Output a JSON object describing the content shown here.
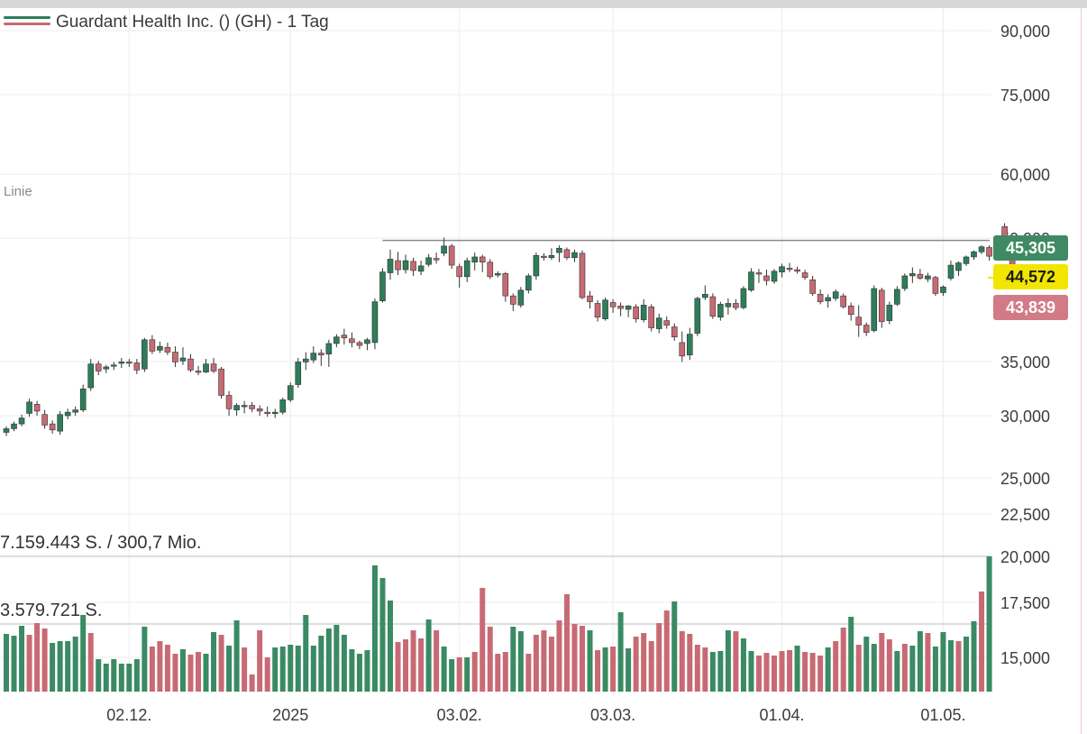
{
  "chart_title": "Guardant Health Inc. () (GH) - 1 Tag",
  "indicator_label": "Linie",
  "volume_labels": {
    "top": "7.159.443 S. / 300,7 Mio.",
    "mid": "3.579.721 S."
  },
  "price_badges": [
    {
      "value": "45,305",
      "bg": "#3e8a62",
      "fg": "#ffffff"
    },
    {
      "value": "44,572",
      "bg": "#f2e600",
      "fg": "#1a1a1a"
    },
    {
      "value": "43,839",
      "bg": "#d27a85",
      "fg": "#ffffff"
    }
  ],
  "colors": {
    "up": "#2e7d5b",
    "down": "#c86a74",
    "volume_up": "#3a8a64",
    "volume_down": "#c86a74",
    "grid": "#ececec",
    "resistance_line": "#8a8a8a"
  },
  "chart_data": {
    "type": "candlestick",
    "title": "Guardant Health Inc. () (GH) - 1 Tag",
    "y_scale": "log",
    "y_ticks": [
      {
        "value": 90,
        "label": "90,000"
      },
      {
        "value": 75,
        "label": "75,000"
      },
      {
        "value": 60,
        "label": "60,000"
      },
      {
        "value": 50,
        "label": "50,000"
      },
      {
        "value": 35,
        "label": "35,000"
      },
      {
        "value": 30,
        "label": "30,000"
      },
      {
        "value": 25,
        "label": "25,000"
      },
      {
        "value": 22.5,
        "label": "22,500"
      },
      {
        "value": 20,
        "label": "20,000"
      },
      {
        "value": 17.5,
        "label": "17,500"
      },
      {
        "value": 15,
        "label": "15,000"
      }
    ],
    "x_tick_labels": [
      {
        "label": "02.12.",
        "index": 16
      },
      {
        "label": "2025",
        "index": 37
      },
      {
        "label": "03.02.",
        "index": 59
      },
      {
        "label": "03.03.",
        "index": 79
      },
      {
        "label": "01.04.",
        "index": 101
      },
      {
        "label": "01.05.",
        "index": 122
      }
    ],
    "resistance_level": 49.6,
    "last_price": 44.572,
    "ohlc": [
      [
        28.6,
        29.1,
        28.3,
        28.9
      ],
      [
        28.9,
        29.5,
        28.7,
        29.3
      ],
      [
        29.3,
        30.1,
        29.1,
        29.8
      ],
      [
        30.2,
        31.5,
        29.9,
        31.2
      ],
      [
        31.0,
        31.3,
        30.0,
        30.4
      ],
      [
        30.1,
        30.5,
        28.9,
        29.2
      ],
      [
        29.3,
        29.6,
        28.5,
        28.8
      ],
      [
        28.7,
        30.4,
        28.4,
        30.1
      ],
      [
        30.0,
        30.6,
        29.7,
        30.3
      ],
      [
        30.3,
        30.8,
        30.0,
        30.5
      ],
      [
        30.5,
        32.8,
        30.3,
        32.4
      ],
      [
        32.5,
        35.3,
        32.2,
        34.8
      ],
      [
        34.8,
        35.1,
        33.7,
        34.1
      ],
      [
        34.3,
        34.7,
        33.9,
        34.5
      ],
      [
        34.6,
        35.0,
        34.2,
        34.7
      ],
      [
        34.9,
        35.4,
        34.4,
        35.0
      ],
      [
        35.0,
        35.3,
        34.5,
        34.9
      ],
      [
        34.9,
        35.3,
        33.8,
        34.2
      ],
      [
        34.3,
        37.5,
        34.0,
        37.3
      ],
      [
        37.3,
        37.8,
        35.8,
        36.1
      ],
      [
        36.2,
        37.1,
        35.9,
        36.6
      ],
      [
        36.5,
        37.0,
        35.7,
        36.0
      ],
      [
        36.0,
        36.6,
        34.5,
        35.0
      ],
      [
        35.1,
        36.5,
        34.7,
        35.4
      ],
      [
        35.3,
        35.8,
        34.0,
        34.2
      ],
      [
        34.1,
        34.6,
        33.7,
        34.0
      ],
      [
        34.0,
        35.3,
        33.9,
        34.8
      ],
      [
        34.8,
        35.4,
        33.9,
        34.1
      ],
      [
        34.3,
        34.5,
        31.5,
        31.8
      ],
      [
        31.8,
        32.2,
        30.0,
        30.6
      ],
      [
        30.5,
        31.1,
        30.0,
        30.9
      ],
      [
        30.8,
        31.3,
        30.2,
        30.9
      ],
      [
        30.9,
        31.2,
        30.3,
        30.6
      ],
      [
        30.6,
        30.9,
        30.0,
        30.4
      ],
      [
        30.3,
        30.8,
        29.9,
        30.2
      ],
      [
        30.2,
        30.6,
        29.8,
        30.3
      ],
      [
        30.3,
        31.6,
        30.1,
        31.4
      ],
      [
        31.4,
        33.0,
        31.2,
        32.7
      ],
      [
        32.8,
        35.4,
        32.5,
        35.0
      ],
      [
        35.0,
        36.0,
        34.2,
        35.3
      ],
      [
        35.2,
        36.6,
        34.9,
        35.9
      ],
      [
        35.9,
        36.3,
        34.6,
        35.7
      ],
      [
        35.8,
        37.3,
        34.5,
        36.9
      ],
      [
        36.9,
        37.9,
        36.5,
        37.6
      ],
      [
        37.8,
        38.5,
        36.8,
        37.5
      ],
      [
        37.4,
        38.1,
        36.5,
        37.0
      ],
      [
        37.0,
        37.2,
        36.3,
        36.7
      ],
      [
        36.9,
        37.5,
        36.2,
        37.3
      ],
      [
        37.0,
        42.0,
        36.3,
        41.6
      ],
      [
        41.7,
        45.8,
        41.5,
        45.3
      ],
      [
        45.2,
        48.3,
        44.3,
        47.0
      ],
      [
        46.8,
        48.0,
        44.9,
        45.6
      ],
      [
        45.6,
        47.6,
        45.1,
        46.8
      ],
      [
        46.7,
        47.2,
        44.8,
        45.5
      ],
      [
        45.4,
        46.8,
        44.9,
        46.1
      ],
      [
        46.3,
        47.7,
        46.0,
        47.2
      ],
      [
        47.1,
        47.9,
        46.4,
        46.9
      ],
      [
        47.8,
        50.0,
        47.4,
        48.8
      ],
      [
        48.8,
        49.1,
        45.7,
        46.2
      ],
      [
        46.0,
        46.4,
        43.3,
        44.7
      ],
      [
        44.7,
        47.2,
        44.0,
        46.8
      ],
      [
        46.6,
        47.9,
        45.5,
        47.3
      ],
      [
        47.3,
        47.6,
        45.3,
        46.6
      ],
      [
        46.6,
        47.0,
        44.4,
        44.7
      ],
      [
        44.9,
        45.4,
        44.6,
        45.1
      ],
      [
        45.1,
        45.3,
        41.6,
        42.3
      ],
      [
        42.3,
        42.6,
        40.5,
        41.3
      ],
      [
        41.2,
        43.4,
        40.9,
        43.0
      ],
      [
        43.0,
        45.1,
        42.6,
        44.8
      ],
      [
        44.8,
        47.9,
        44.3,
        47.5
      ],
      [
        47.4,
        47.8,
        46.8,
        47.3
      ],
      [
        47.2,
        48.5,
        46.9,
        47.5
      ],
      [
        47.9,
        48.9,
        46.6,
        48.5
      ],
      [
        48.3,
        48.6,
        46.9,
        47.2
      ],
      [
        47.2,
        48.3,
        46.6,
        47.9
      ],
      [
        47.8,
        48.2,
        41.9,
        42.1
      ],
      [
        42.3,
        42.9,
        40.8,
        41.6
      ],
      [
        41.4,
        41.8,
        39.3,
        39.8
      ],
      [
        39.6,
        42.1,
        39.4,
        41.8
      ],
      [
        41.5,
        41.9,
        40.3,
        41.0
      ],
      [
        41.1,
        41.5,
        39.9,
        40.8
      ],
      [
        40.7,
        41.2,
        39.8,
        41.1
      ],
      [
        41.0,
        41.3,
        39.2,
        39.6
      ],
      [
        39.5,
        41.9,
        39.2,
        41.2
      ],
      [
        41.0,
        41.3,
        38.2,
        38.6
      ],
      [
        38.5,
        40.2,
        38.0,
        39.7
      ],
      [
        39.4,
        39.9,
        38.5,
        38.9
      ],
      [
        38.7,
        39.1,
        37.2,
        37.6
      ],
      [
        37.0,
        38.2,
        35.0,
        35.6
      ],
      [
        35.7,
        38.6,
        35.2,
        37.9
      ],
      [
        38.0,
        42.2,
        37.7,
        42.0
      ],
      [
        42.1,
        43.6,
        41.8,
        42.5
      ],
      [
        42.2,
        42.6,
        39.6,
        39.9
      ],
      [
        39.8,
        41.6,
        39.4,
        41.3
      ],
      [
        41.0,
        42.0,
        40.1,
        41.4
      ],
      [
        41.4,
        41.9,
        40.6,
        40.9
      ],
      [
        40.9,
        43.5,
        40.7,
        43.2
      ],
      [
        43.0,
        45.8,
        42.8,
        45.3
      ],
      [
        45.2,
        45.7,
        43.9,
        45.1
      ],
      [
        44.8,
        45.6,
        43.6,
        44.2
      ],
      [
        44.1,
        45.7,
        43.8,
        45.4
      ],
      [
        45.3,
        46.4,
        44.6,
        46.0
      ],
      [
        45.8,
        46.5,
        45.3,
        45.7
      ],
      [
        45.6,
        46.0,
        45.1,
        45.4
      ],
      [
        45.2,
        45.6,
        44.3,
        44.6
      ],
      [
        44.3,
        44.8,
        42.3,
        42.6
      ],
      [
        42.5,
        43.1,
        41.3,
        41.6
      ],
      [
        41.7,
        42.5,
        40.9,
        42.1
      ],
      [
        42.0,
        43.1,
        41.7,
        42.8
      ],
      [
        42.3,
        42.6,
        40.8,
        41.0
      ],
      [
        41.1,
        41.5,
        39.4,
        40.1
      ],
      [
        39.8,
        41.2,
        37.6,
        38.9
      ],
      [
        38.9,
        39.2,
        37.7,
        38.1
      ],
      [
        38.3,
        43.6,
        38.1,
        43.2
      ],
      [
        43.0,
        43.3,
        38.6,
        39.3
      ],
      [
        39.4,
        41.6,
        39.0,
        41.2
      ],
      [
        41.3,
        43.5,
        41.1,
        43.1
      ],
      [
        43.2,
        45.1,
        42.9,
        44.8
      ],
      [
        44.8,
        45.9,
        43.9,
        45.1
      ],
      [
        45.0,
        45.7,
        44.3,
        44.5
      ],
      [
        44.4,
        45.2,
        44.0,
        44.8
      ],
      [
        44.6,
        44.8,
        42.3,
        42.6
      ],
      [
        42.7,
        43.6,
        42.3,
        43.4
      ],
      [
        44.5,
        46.8,
        44.2,
        46.2
      ],
      [
        45.5,
        46.7,
        44.8,
        46.5
      ],
      [
        46.4,
        47.5,
        46.1,
        47.3
      ],
      [
        47.3,
        48.2,
        46.9,
        48.0
      ],
      [
        48.0,
        48.9,
        47.7,
        48.7
      ],
      [
        48.6,
        48.9,
        46.8,
        47.4
      ],
      [
        47.4,
        49.0,
        46.9,
        48.4
      ],
      [
        51.6,
        52.1,
        48.8,
        49.1
      ],
      [
        49.1,
        49.8,
        44.6,
        45.3
      ]
    ],
    "volume": [
      [
        6.4,
        "up"
      ],
      [
        6.2,
        "up"
      ],
      [
        7.3,
        "up"
      ],
      [
        6.3,
        "down"
      ],
      [
        7.6,
        "down"
      ],
      [
        7.0,
        "down"
      ],
      [
        5.4,
        "up"
      ],
      [
        5.6,
        "up"
      ],
      [
        5.6,
        "up"
      ],
      [
        6.1,
        "up"
      ],
      [
        8.5,
        "up"
      ],
      [
        6.5,
        "down"
      ],
      [
        3.6,
        "up"
      ],
      [
        3.1,
        "up"
      ],
      [
        3.6,
        "up"
      ],
      [
        3.1,
        "up"
      ],
      [
        3.1,
        "up"
      ],
      [
        3.6,
        "up"
      ],
      [
        7.2,
        "up"
      ],
      [
        5.0,
        "down"
      ],
      [
        5.6,
        "down"
      ],
      [
        5.2,
        "down"
      ],
      [
        4.2,
        "down"
      ],
      [
        4.7,
        "up"
      ],
      [
        4.1,
        "down"
      ],
      [
        4.4,
        "down"
      ],
      [
        4.2,
        "up"
      ],
      [
        6.6,
        "up"
      ],
      [
        6.3,
        "down"
      ],
      [
        5.1,
        "up"
      ],
      [
        7.9,
        "up"
      ],
      [
        4.9,
        "down"
      ],
      [
        1.9,
        "down"
      ],
      [
        6.8,
        "down"
      ],
      [
        3.8,
        "down"
      ],
      [
        4.9,
        "up"
      ],
      [
        5.0,
        "up"
      ],
      [
        5.2,
        "up"
      ],
      [
        5.1,
        "up"
      ],
      [
        8.5,
        "up"
      ],
      [
        5.1,
        "up"
      ],
      [
        6.2,
        "up"
      ],
      [
        7.0,
        "up"
      ],
      [
        7.4,
        "up"
      ],
      [
        6.3,
        "up"
      ],
      [
        4.7,
        "up"
      ],
      [
        4.2,
        "up"
      ],
      [
        4.6,
        "up"
      ],
      [
        14.0,
        "up"
      ],
      [
        12.6,
        "up"
      ],
      [
        10.1,
        "up"
      ],
      [
        5.5,
        "down"
      ],
      [
        5.8,
        "down"
      ],
      [
        6.8,
        "down"
      ],
      [
        5.9,
        "down"
      ],
      [
        8.0,
        "up"
      ],
      [
        6.8,
        "down"
      ],
      [
        5.0,
        "up"
      ],
      [
        3.6,
        "up"
      ],
      [
        3.8,
        "down"
      ],
      [
        3.8,
        "up"
      ],
      [
        4.4,
        "down"
      ],
      [
        11.5,
        "down"
      ],
      [
        7.2,
        "down"
      ],
      [
        4.2,
        "down"
      ],
      [
        4.4,
        "down"
      ],
      [
        7.2,
        "up"
      ],
      [
        6.7,
        "up"
      ],
      [
        4.2,
        "down"
      ],
      [
        6.3,
        "down"
      ],
      [
        6.8,
        "down"
      ],
      [
        6.1,
        "down"
      ],
      [
        7.9,
        "down"
      ],
      [
        10.8,
        "down"
      ],
      [
        7.5,
        "down"
      ],
      [
        7.3,
        "down"
      ],
      [
        6.8,
        "up"
      ],
      [
        4.6,
        "down"
      ],
      [
        4.9,
        "up"
      ],
      [
        5.0,
        "down"
      ],
      [
        8.8,
        "up"
      ],
      [
        4.8,
        "up"
      ],
      [
        6.1,
        "down"
      ],
      [
        6.5,
        "down"
      ],
      [
        5.6,
        "down"
      ],
      [
        7.6,
        "down"
      ],
      [
        9.0,
        "down"
      ],
      [
        10.0,
        "up"
      ],
      [
        6.7,
        "down"
      ],
      [
        6.4,
        "down"
      ],
      [
        5.2,
        "down"
      ],
      [
        4.9,
        "down"
      ],
      [
        4.4,
        "up"
      ],
      [
        4.5,
        "up"
      ],
      [
        6.8,
        "up"
      ],
      [
        6.7,
        "down"
      ],
      [
        5.9,
        "up"
      ],
      [
        4.5,
        "up"
      ],
      [
        4.0,
        "down"
      ],
      [
        4.3,
        "down"
      ],
      [
        4.0,
        "down"
      ],
      [
        4.5,
        "down"
      ],
      [
        4.6,
        "down"
      ],
      [
        5.1,
        "up"
      ],
      [
        4.4,
        "down"
      ],
      [
        4.3,
        "down"
      ],
      [
        4.0,
        "down"
      ],
      [
        4.9,
        "up"
      ],
      [
        5.6,
        "down"
      ],
      [
        7.1,
        "down"
      ],
      [
        8.3,
        "up"
      ],
      [
        5.2,
        "down"
      ],
      [
        6.1,
        "up"
      ],
      [
        5.3,
        "up"
      ],
      [
        6.5,
        "down"
      ],
      [
        5.8,
        "down"
      ],
      [
        4.5,
        "up"
      ],
      [
        5.3,
        "down"
      ],
      [
        5.1,
        "up"
      ],
      [
        6.7,
        "up"
      ],
      [
        6.5,
        "down"
      ],
      [
        5.0,
        "up"
      ],
      [
        6.6,
        "up"
      ],
      [
        5.7,
        "up"
      ],
      [
        5.6,
        "down"
      ],
      [
        6.1,
        "up"
      ],
      [
        7.8,
        "up"
      ],
      [
        11.1,
        "down"
      ],
      [
        15.0,
        "up"
      ]
    ],
    "volume_unit": "Mio. S."
  }
}
